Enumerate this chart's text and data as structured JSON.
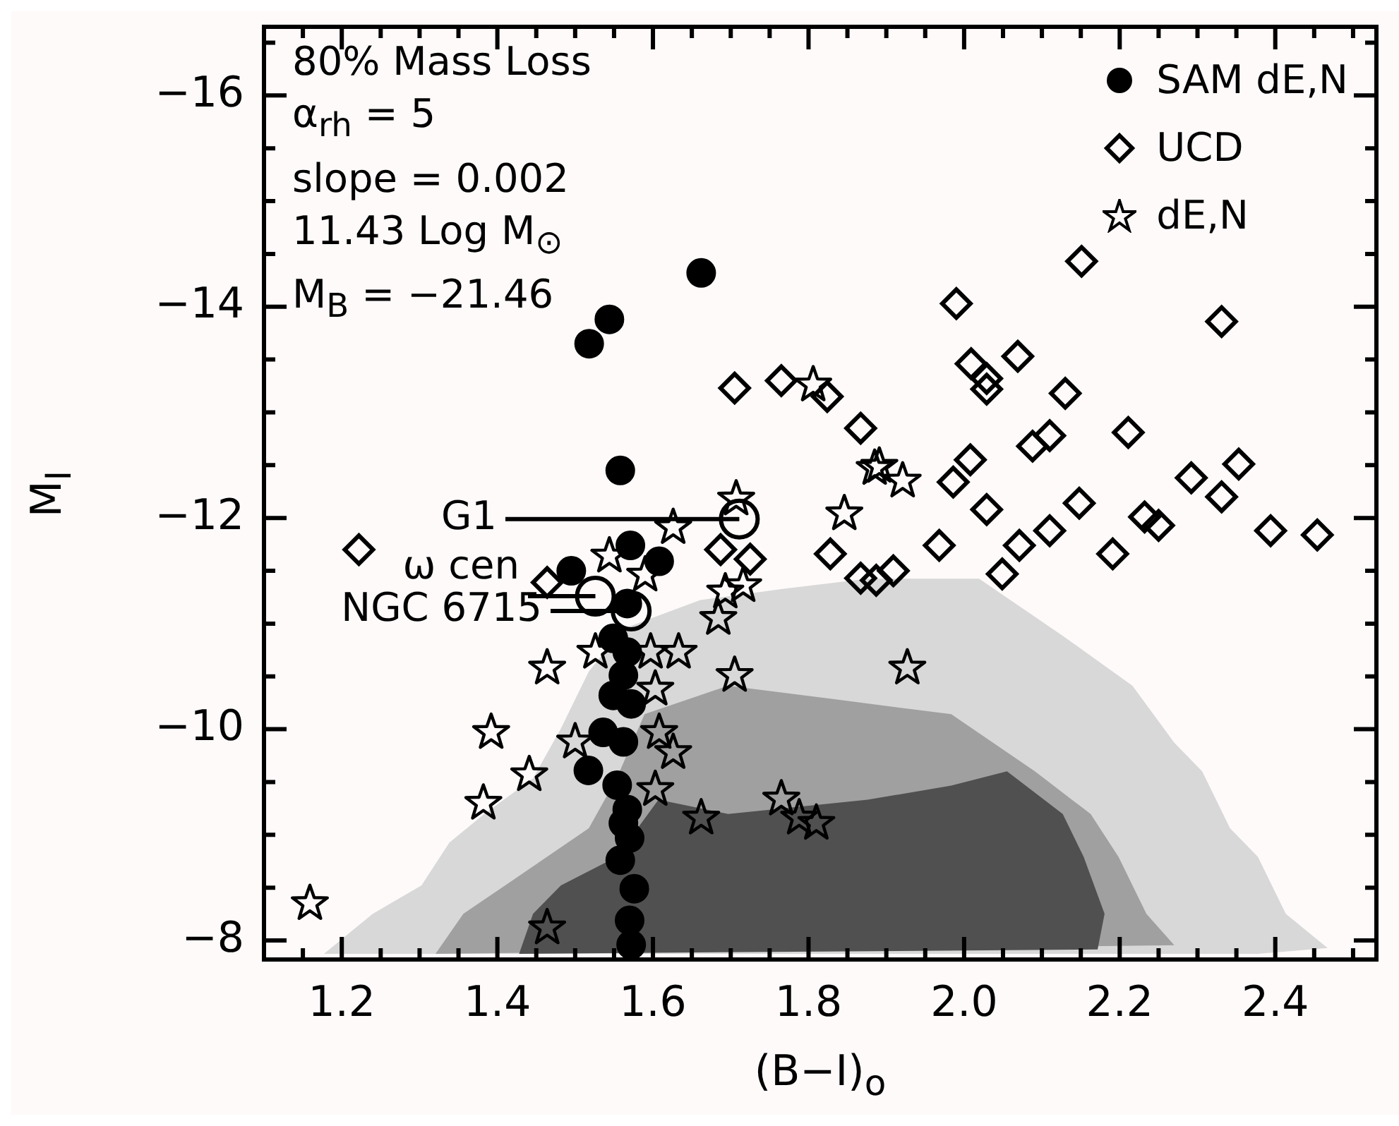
{
  "chart_data": {
    "type": "scatter",
    "xlabel": "(B−I)$_{o}$",
    "ylabel": "M$_{I}$",
    "xlim": [
      1.1,
      2.53
    ],
    "ylim": [
      -7.82,
      -16.65
    ],
    "xticks": [
      {
        "value": 1.15,
        "label": null
      },
      1.2,
      {
        "value": 1.25,
        "label": null
      },
      {
        "value": 1.3,
        "label": null
      },
      {
        "value": 1.35,
        "label": null
      },
      1.4,
      {
        "value": 1.45,
        "label": null
      },
      {
        "value": 1.5,
        "label": null
      },
      {
        "value": 1.55,
        "label": null
      },
      1.6,
      {
        "value": 1.65,
        "label": null
      },
      {
        "value": 1.7,
        "label": null
      },
      {
        "value": 1.75,
        "label": null
      },
      1.8,
      {
        "value": 1.85,
        "label": null
      },
      {
        "value": 1.9,
        "label": null
      },
      {
        "value": 1.95,
        "label": null
      },
      {
        "value": 2.0,
        "label": "2.0"
      },
      {
        "value": 2.05,
        "label": null
      },
      {
        "value": 2.1,
        "label": null
      },
      {
        "value": 2.15,
        "label": null
      },
      2.2,
      {
        "value": 2.25,
        "label": null
      },
      {
        "value": 2.3,
        "label": null
      },
      {
        "value": 2.35,
        "label": null
      },
      2.4,
      {
        "value": 2.45,
        "label": null
      },
      {
        "value": 2.5,
        "label": null
      }
    ],
    "yticks": [
      {
        "value": -16.5,
        "label": null
      },
      {
        "value": -16,
        "label": "−16"
      },
      {
        "value": -15.5,
        "label": null
      },
      {
        "value": -15,
        "label": null
      },
      {
        "value": -14.5,
        "label": null
      },
      {
        "value": -14,
        "label": "−14"
      },
      {
        "value": -13.5,
        "label": null
      },
      {
        "value": -13,
        "label": null
      },
      {
        "value": -12.5,
        "label": null
      },
      {
        "value": -12,
        "label": "−12"
      },
      {
        "value": -11.5,
        "label": null
      },
      {
        "value": -11,
        "label": null
      },
      {
        "value": -10.5,
        "label": null
      },
      {
        "value": -10,
        "label": "−10"
      },
      {
        "value": -9.5,
        "label": null
      },
      {
        "value": -9,
        "label": null
      },
      {
        "value": -8.5,
        "label": null
      },
      {
        "value": -8,
        "label": "−8"
      }
    ],
    "legend": "top right",
    "annotations": [
      "80% Mass Loss",
      "α$_{rh}$ = 5",
      "slope = 0.002",
      "11.43 Log M$_{⊙}$",
      "M$_{B}$ = −21.46",
      {
        "text": "G1",
        "x": 1.711,
        "y": -11.99
      },
      {
        "text": "ω cen",
        "x": 1.526,
        "y": -11.26
      },
      {
        "text": "NGC 6715",
        "x": 1.572,
        "y": -11.12
      }
    ],
    "series": [
      {
        "name": "SAM dE,N",
        "color": "#000000",
        "marker": "circle",
        "x": [
          1.544,
          1.662,
          1.518,
          1.558,
          1.571,
          1.608,
          1.495,
          1.567,
          1.549,
          1.567,
          1.562,
          1.549,
          1.572,
          1.536,
          1.562,
          1.517,
          1.554,
          1.567,
          1.562,
          1.57,
          1.558,
          1.576,
          1.57,
          1.572
        ],
        "values": [
          -13.88,
          -14.32,
          -13.65,
          -12.45,
          -11.74,
          -11.59,
          -11.5,
          -11.19,
          -10.86,
          -10.73,
          -10.51,
          -10.32,
          -10.24,
          -9.97,
          -9.88,
          -9.61,
          -9.47,
          -9.24,
          -9.11,
          -8.97,
          -8.76,
          -8.49,
          -8.19,
          -7.96
        ]
      },
      {
        "name": "UCD",
        "color": "#000000",
        "marker": "diamond",
        "x": [
          2.151,
          1.99,
          2.331,
          2.009,
          2.069,
          2.029,
          2.029,
          2.13,
          1.867,
          1.824,
          2.11,
          2.088,
          2.211,
          2.008,
          1.705,
          1.765,
          1.986,
          2.029,
          2.148,
          2.292,
          2.353,
          2.331,
          2.232,
          2.25,
          2.394,
          2.454,
          1.828,
          1.867,
          1.887,
          1.909,
          1.968,
          2.071,
          2.11,
          2.049,
          2.191,
          1.222,
          1.687,
          1.725,
          1.464
        ],
        "values": [
          -14.43,
          -14.03,
          -13.86,
          -13.46,
          -13.53,
          -13.32,
          -13.22,
          -13.18,
          -12.85,
          -13.15,
          -12.78,
          -12.68,
          -12.81,
          -12.55,
          -13.23,
          -13.3,
          -12.34,
          -12.08,
          -12.14,
          -12.38,
          -12.51,
          -12.2,
          -12.01,
          -11.93,
          -11.88,
          -11.84,
          -11.66,
          -11.43,
          -11.41,
          -11.5,
          -11.74,
          -11.74,
          -11.88,
          -11.47,
          -11.66,
          -11.7,
          -11.7,
          -11.61,
          -11.39
        ]
      },
      {
        "name": "dE,N",
        "color": "#000000",
        "marker": "star",
        "x": [
          1.707,
          1.626,
          1.544,
          1.59,
          1.716,
          1.693,
          1.684,
          1.633,
          1.526,
          1.597,
          1.464,
          1.705,
          1.603,
          1.392,
          1.5,
          1.608,
          1.626,
          1.441,
          1.382,
          1.603,
          1.662,
          1.765,
          1.788,
          1.464,
          1.159,
          1.806,
          1.891,
          1.885,
          1.921,
          1.846,
          1.927,
          1.81
        ],
        "values": [
          -12.18,
          -11.91,
          -11.64,
          -11.46,
          -11.36,
          -11.3,
          -11.05,
          -10.73,
          -10.73,
          -10.73,
          -10.58,
          -10.51,
          -10.38,
          -9.97,
          -9.88,
          -9.97,
          -9.78,
          -9.57,
          -9.3,
          -9.43,
          -9.16,
          -9.34,
          -9.16,
          -8.12,
          -8.35,
          -13.26,
          -12.49,
          -12.47,
          -12.35,
          -12.04,
          -10.58,
          -9.11
        ]
      },
      {
        "color": "#000000",
        "marker": "circle",
        "x": [
          1.711,
          1.526,
          1.572
        ],
        "values": [
          -11.99,
          -11.26,
          -11.12
        ]
      }
    ]
  }
}
